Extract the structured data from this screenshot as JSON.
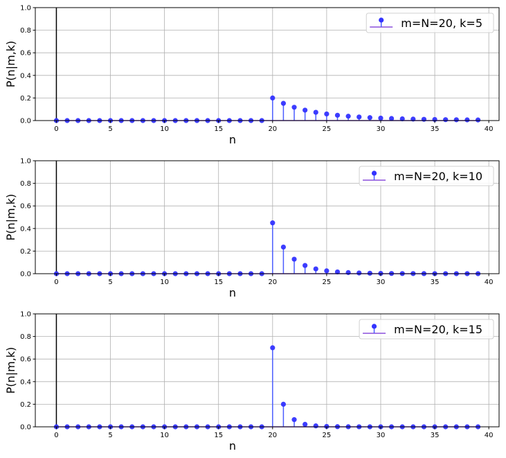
{
  "chart_data": [
    {
      "type": "stem",
      "xlabel": "n",
      "ylabel": "P(n|m,k)",
      "xlim": [
        -1.95,
        40.95
      ],
      "ylim": [
        0,
        1
      ],
      "xticks": [
        0,
        5,
        10,
        15,
        20,
        25,
        30,
        35,
        40
      ],
      "yticks": [
        0.0,
        0.2,
        0.4,
        0.6,
        0.8,
        1.0
      ],
      "ytick_labels": [
        "0.0",
        "0.2",
        "0.4",
        "0.6",
        "0.8",
        "1.0"
      ],
      "grid": true,
      "legend_position": "top-right",
      "vline_x": 0,
      "series": [
        {
          "name": "m=N=20, k=5",
          "x": [
            0,
            1,
            2,
            3,
            4,
            5,
            6,
            7,
            8,
            9,
            10,
            11,
            12,
            13,
            14,
            15,
            16,
            17,
            18,
            19,
            20,
            21,
            22,
            23,
            24,
            25,
            26,
            27,
            28,
            29,
            30,
            31,
            32,
            33,
            34,
            35,
            36,
            37,
            38,
            39
          ],
          "y": [
            0,
            0,
            0,
            0,
            0,
            0,
            0,
            0,
            0,
            0,
            0,
            0,
            0,
            0,
            0,
            0,
            0,
            0,
            0,
            0,
            0.2,
            0.1524,
            0.1178,
            0.0922,
            0.073,
            0.0584,
            0.0471,
            0.0384,
            0.0316,
            0.0261,
            0.0218,
            0.0183,
            0.0154,
            0.0131,
            0.0111,
            0.0096,
            0.0082,
            0.0071,
            0.0062,
            0.0054
          ]
        }
      ]
    },
    {
      "type": "stem",
      "xlabel": "n",
      "ylabel": "P(n|m,k)",
      "xlim": [
        -1.95,
        40.95
      ],
      "ylim": [
        0,
        1
      ],
      "xticks": [
        0,
        5,
        10,
        15,
        20,
        25,
        30,
        35,
        40
      ],
      "yticks": [
        0.0,
        0.2,
        0.4,
        0.6,
        0.8,
        1.0
      ],
      "ytick_labels": [
        "0.0",
        "0.2",
        "0.4",
        "0.6",
        "0.8",
        "1.0"
      ],
      "grid": true,
      "legend_position": "top-right",
      "vline_x": 0,
      "series": [
        {
          "name": "m=N=20, k=10",
          "x": [
            0,
            1,
            2,
            3,
            4,
            5,
            6,
            7,
            8,
            9,
            10,
            11,
            12,
            13,
            14,
            15,
            16,
            17,
            18,
            19,
            20,
            21,
            22,
            23,
            24,
            25,
            26,
            27,
            28,
            29,
            30,
            31,
            32,
            33,
            34,
            35,
            36,
            37,
            38,
            39
          ],
          "y": [
            0,
            0,
            0,
            0,
            0,
            0,
            0,
            0,
            0,
            0,
            0,
            0,
            0,
            0,
            0,
            0,
            0,
            0,
            0,
            0,
            0.45,
            0.2357,
            0.1286,
            0.0727,
            0.0424,
            0.0254,
            0.0157,
            0.0099,
            0.0063,
            0.0042,
            0.0028,
            0.0019,
            0.0013,
            0.0009,
            0.0006,
            0.0005,
            0.0003,
            0.0002,
            0.0002,
            0.0001
          ]
        }
      ]
    },
    {
      "type": "stem",
      "xlabel": "n",
      "ylabel": "P(n|m,k)",
      "xlim": [
        -1.95,
        40.95
      ],
      "ylim": [
        0,
        1
      ],
      "xticks": [
        0,
        5,
        10,
        15,
        20,
        25,
        30,
        35,
        40
      ],
      "yticks": [
        0.0,
        0.2,
        0.4,
        0.6,
        0.8,
        1.0
      ],
      "ytick_labels": [
        "0.0",
        "0.2",
        "0.4",
        "0.6",
        "0.8",
        "1.0"
      ],
      "grid": true,
      "legend_position": "top-right",
      "vline_x": 0,
      "series": [
        {
          "name": "m=N=20, k=15",
          "x": [
            0,
            1,
            2,
            3,
            4,
            5,
            6,
            7,
            8,
            9,
            10,
            11,
            12,
            13,
            14,
            15,
            16,
            17,
            18,
            19,
            20,
            21,
            22,
            23,
            24,
            25,
            26,
            27,
            28,
            29,
            30,
            31,
            32,
            33,
            34,
            35,
            36,
            37,
            38,
            39
          ],
          "y": [
            0,
            0,
            0,
            0,
            0,
            0,
            0,
            0,
            0,
            0,
            0,
            0,
            0,
            0,
            0,
            0,
            0,
            0,
            0,
            0,
            0.7,
            0.2,
            0.0636,
            0.0221,
            0.0083,
            0.0033,
            0.0014,
            0.0006,
            0.0003,
            0.0001,
            0.0001,
            0,
            0,
            0,
            0,
            0,
            0,
            0,
            0,
            0
          ]
        }
      ]
    }
  ],
  "colors": {
    "marker": "#3333ff",
    "stem": "#4a5cff",
    "baseline": "#8a4fdc",
    "vline": "#000000",
    "grid": "#b0b0b0"
  }
}
